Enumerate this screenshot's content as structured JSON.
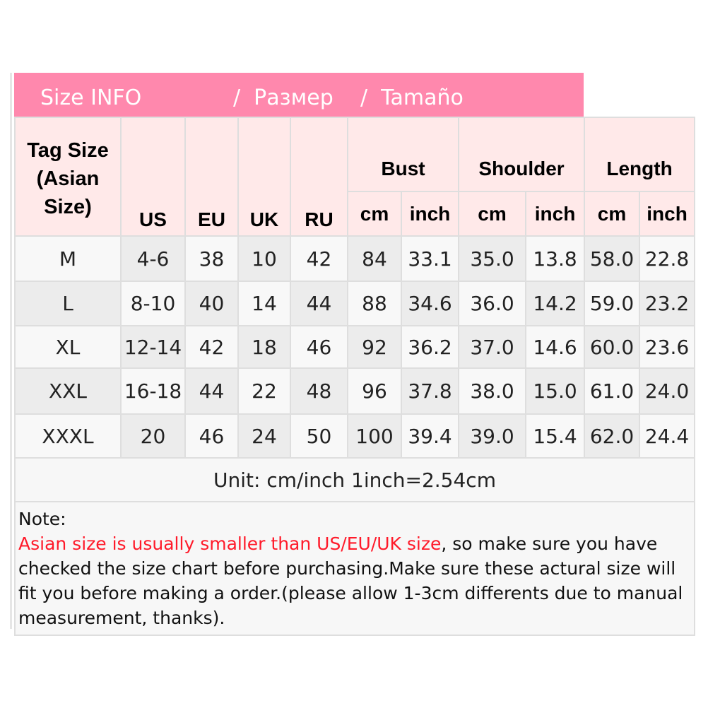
{
  "title": {
    "part1": "Size INFO",
    "part2": "/  Размер",
    "part3": "/  Tamaño"
  },
  "headers": {
    "tag": "Tag Size (Asian Size)",
    "us": "US",
    "eu": "EU",
    "uk": "UK",
    "ru": "RU",
    "bust": "Bust",
    "shoulder": "Shoulder",
    "length": "Length",
    "cm": "cm",
    "inch": "inch"
  },
  "rows": [
    [
      "M",
      "4-6",
      "38",
      "10",
      "42",
      "84",
      "33.1",
      "35.0",
      "13.8",
      "58.0",
      "22.8"
    ],
    [
      "L",
      "8-10",
      "40",
      "14",
      "44",
      "88",
      "34.6",
      "36.0",
      "14.2",
      "59.0",
      "23.2"
    ],
    [
      "XL",
      "12-14",
      "42",
      "18",
      "46",
      "92",
      "36.2",
      "37.0",
      "14.6",
      "60.0",
      "23.6"
    ],
    [
      "XXL",
      "16-18",
      "44",
      "22",
      "48",
      "96",
      "37.8",
      "38.0",
      "15.0",
      "61.0",
      "24.0"
    ],
    [
      "XXXL",
      "20",
      "46",
      "24",
      "50",
      "100",
      "39.4",
      "39.0",
      "15.4",
      "62.0",
      "24.4"
    ]
  ],
  "unit": "Unit: cm/inch    1inch=2.54cm",
  "note": {
    "label": "Note:",
    "red": "Asian size is usually smaller than US/EU/UK size",
    "rest": ", so make sure you have checked the size chart before purchasing.Make sure these actural size will fit you before making a order.(please allow 1-3cm differents due to manual measurement, thanks)."
  },
  "colors": {
    "title_bg": "#ff88ad",
    "header_bg": "#ffe9e9",
    "note_red": "#ff1a2a"
  }
}
